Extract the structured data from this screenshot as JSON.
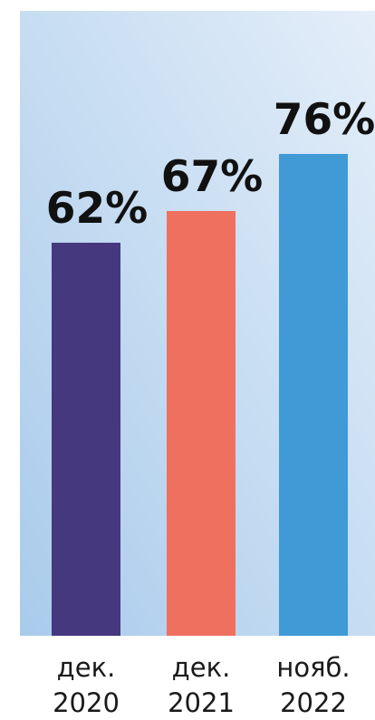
{
  "chart_data": {
    "type": "bar",
    "categories": [
      [
        "дек.",
        "2020"
      ],
      [
        "дек.",
        "2021"
      ],
      [
        "нояб.",
        "2022"
      ]
    ],
    "values": [
      62,
      67,
      76
    ],
    "data_labels": [
      "62%",
      "67%",
      "76%"
    ],
    "title": "",
    "xlabel": "",
    "ylabel": "",
    "ylim": [
      0,
      100
    ],
    "grid": false,
    "legend": "none"
  },
  "colors": {
    "bars": [
      "#46387f",
      "#f07060",
      "#3f9ad6"
    ],
    "background_top": "#e4eef9",
    "background_bottom": "#a9cbeb",
    "label_text": "#111111",
    "tick_text": "#1a1a1a"
  }
}
